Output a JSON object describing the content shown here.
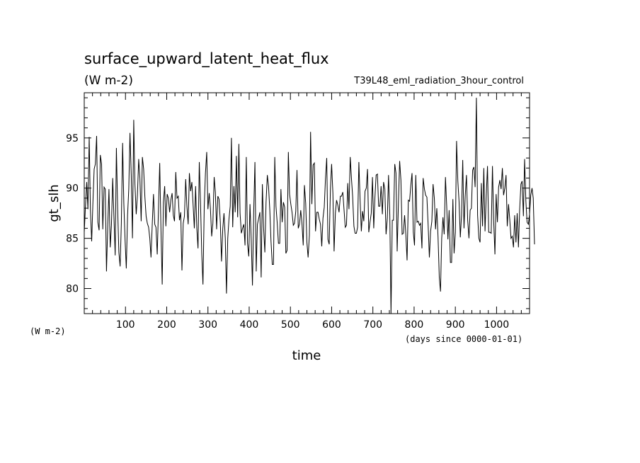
{
  "chart_data": {
    "type": "line",
    "title": "surface_upward_latent_heat_flux",
    "units": "(W m-2)",
    "experiment": "T39L48_eml_radiation_3hour_control",
    "xlabel": "time",
    "x_units": "(days since 0000-01-01)",
    "ylabel": "gt_slh",
    "y_units": "(W m-2)",
    "xlim": [
      0,
      1080
    ],
    "ylim": [
      77.5,
      99.5
    ],
    "x_ticks": [
      100,
      200,
      300,
      400,
      500,
      600,
      700,
      800,
      900,
      1000
    ],
    "y_ticks": [
      80,
      85,
      90,
      95
    ],
    "grid": false,
    "series": [
      {
        "x_step": 3,
        "values": [
          85.6,
          88.2,
          90.6,
          87.9,
          95.1,
          87.8,
          84.7,
          88.5,
          91.9,
          92.4,
          95.2,
          86.6,
          85.8,
          93.3,
          92.4,
          85.9,
          90.1,
          89.9,
          81.7,
          86.3,
          89.9,
          84.1,
          86.3,
          91.0,
          87.2,
          83.3,
          94.0,
          87.9,
          83.6,
          82.2,
          86.5,
          94.5,
          88.5,
          84.8,
          82.0,
          87.3,
          89.9,
          95.5,
          91.3,
          85.0,
          96.8,
          90.4,
          87.4,
          89.3,
          92.9,
          91.0,
          86.7,
          93.1,
          91.9,
          89.2,
          87.2,
          86.5,
          86.1,
          85.0,
          83.1,
          86.5,
          89.4,
          86.4,
          86.1,
          83.4,
          87.8,
          92.5,
          86.1,
          80.4,
          88.6,
          90.2,
          86.2,
          89.4,
          89.0,
          87.6,
          88.8,
          89.5,
          87.3,
          86.7,
          91.6,
          89.0,
          89.2,
          86.8,
          87.6,
          81.8,
          86.5,
          87.2,
          90.9,
          88.2,
          86.4,
          91.5,
          89.7,
          90.6,
          88.3,
          86.0,
          90.2,
          86.0,
          84.0,
          92.6,
          88.6,
          83.4,
          80.4,
          88.2,
          91.5,
          93.6,
          87.9,
          89.5,
          88.0,
          85.2,
          86.5,
          91.1,
          89.6,
          85.9,
          89.2,
          88.9,
          86.6,
          82.7,
          86.0,
          87.5,
          85.0,
          79.5,
          85.0,
          86.9,
          88.2,
          95.0,
          86.1,
          90.2,
          87.6,
          93.2,
          87.1,
          94.4,
          87.5,
          85.5,
          86.0,
          86.4,
          84.3,
          93.1,
          84.5,
          83.2,
          88.4,
          84.8,
          80.3,
          87.7,
          92.6,
          81.7,
          86.4,
          87.0,
          87.6,
          81.1,
          90.4,
          86.1,
          83.6,
          88.6,
          91.3,
          90.2,
          87.8,
          84.7,
          82.4,
          82.4,
          93.1,
          88.2,
          86.5,
          84.5,
          84.5,
          89.9,
          86.6,
          88.6,
          88.1,
          83.5,
          83.8,
          93.6,
          89.4,
          88.4,
          87.6,
          86.3,
          86.5,
          87.7,
          91.8,
          86.0,
          86.4,
          87.8,
          86.5,
          84.3,
          90.3,
          88.5,
          84.6,
          83.1,
          85.3,
          95.6,
          88.4,
          92.3,
          92.5,
          85.7,
          87.6,
          87.6,
          86.9,
          86.4,
          84.2,
          87.0,
          88.1,
          90.9,
          93.0,
          84.9,
          84.4,
          89.9,
          92.4,
          89.5,
          83.7,
          87.5,
          88.8,
          88.3,
          87.6,
          89.2,
          89.2,
          89.6,
          87.9,
          86.1,
          86.3,
          90.5,
          87.9,
          93.1,
          91.0,
          89.2,
          86.2,
          85.5,
          85.5,
          86.1,
          92.6,
          88.9,
          85.7,
          87.7,
          86.7,
          89.7,
          90.0,
          91.9,
          85.6,
          86.6,
          87.5,
          91.1,
          86.0,
          89.1,
          91.3,
          91.4,
          88.2,
          88.2,
          90.2,
          87.4,
          90.6,
          89.9,
          85.4,
          87.0,
          91.3,
          87.3,
          77.5,
          86.8,
          86.8,
          92.4,
          91.5,
          83.7,
          88.6,
          92.7,
          90.8,
          85.4,
          85.5,
          87.3,
          85.3,
          82.8,
          88.8,
          88.7,
          90.3,
          91.5,
          85.6,
          84.3,
          91.3,
          86.6,
          86.7,
          86.3,
          86.5,
          84.0,
          91.0,
          89.9,
          89.3,
          89.1,
          86.4,
          83.1,
          85.7,
          86.7,
          90.4,
          89.0,
          85.9,
          88.0,
          85.2,
          81.1,
          79.7,
          85.0,
          87.1,
          85.4,
          91.1,
          88.3,
          84.9,
          87.8,
          82.6,
          82.6,
          88.9,
          83.5,
          85.6,
          94.7,
          90.7,
          88.7,
          85.1,
          87.3,
          92.8,
          86.0,
          89.2,
          91.3,
          86.8,
          85.0,
          87.8,
          88.0,
          91.8,
          92.1,
          90.1,
          99.0,
          87.3,
          85.0,
          84.6,
          90.5,
          86.2,
          92.0,
          85.7,
          89.2,
          92.2,
          85.6,
          85.6,
          85.5,
          92.2,
          86.8,
          83.4,
          89.4,
          86.6,
          90.1,
          90.8,
          89.9,
          92.0,
          89.3,
          90.0,
          91.3,
          86.2,
          88.4,
          86.9,
          85.0,
          85.2,
          84.1,
          87.3,
          84.6,
          87.5,
          84.1,
          87.8,
          90.4,
          90.7,
          87.2,
          92.9,
          88.7,
          86.6,
          86.4,
          87.4,
          89.3,
          90.0,
          89.0,
          84.4
        ]
      }
    ]
  }
}
